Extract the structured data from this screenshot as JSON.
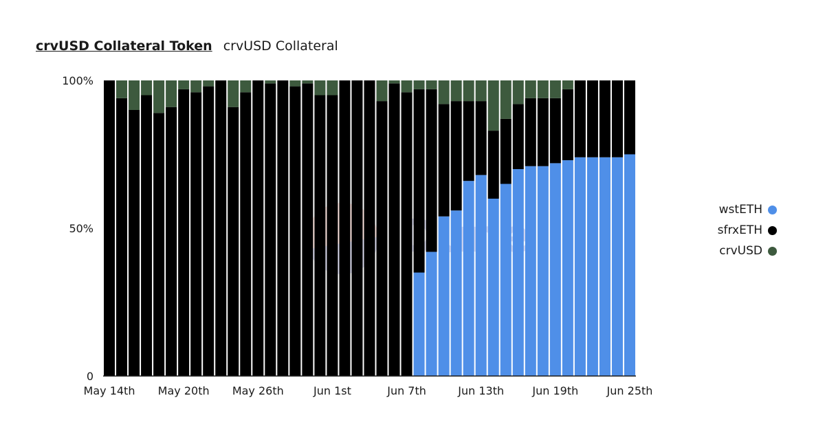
{
  "header": {
    "title": "crvUSD Collateral Token",
    "subtitle": "crvUSD Collateral"
  },
  "watermark": {
    "text": "Dune"
  },
  "colors": {
    "wstETH": "#4f8fe8",
    "sfrxETH": "#000000",
    "crvUSD": "#3d5a3e"
  },
  "chart_data": {
    "type": "bar",
    "stacked": true,
    "normalized": true,
    "title": "crvUSD Collateral Token",
    "xlabel": "",
    "ylabel": "",
    "ylim": [
      0,
      100
    ],
    "y_ticks": [
      "0",
      "50%",
      "100%"
    ],
    "x_tick_labels": [
      "May 14th",
      "May 20th",
      "May 26th",
      "Jun 1st",
      "Jun 7th",
      "Jun 13th",
      "Jun 19th",
      "Jun 25th"
    ],
    "legend_position": "right",
    "categories": [
      "May 14th",
      "May 15th",
      "May 16th",
      "May 17th",
      "May 18th",
      "May 19th",
      "May 20th",
      "May 21st",
      "May 22nd",
      "May 23rd",
      "May 24th",
      "May 25th",
      "May 26th",
      "May 27th",
      "May 28th",
      "May 29th",
      "May 30th",
      "May 31st",
      "Jun 1st",
      "Jun 2nd",
      "Jun 3rd",
      "Jun 4th",
      "Jun 5th",
      "Jun 6th",
      "Jun 7th",
      "Jun 8th",
      "Jun 9th",
      "Jun 10th",
      "Jun 11th",
      "Jun 12th",
      "Jun 13th",
      "Jun 14th",
      "Jun 15th",
      "Jun 16th",
      "Jun 17th",
      "Jun 18th",
      "Jun 19th",
      "Jun 20th",
      "Jun 21st",
      "Jun 22nd",
      "Jun 23rd",
      "Jun 24th",
      "Jun 25th"
    ],
    "series": [
      {
        "name": "wstETH",
        "color": "#4f8fe8",
        "values": [
          0,
          0,
          0,
          0,
          0,
          0,
          0,
          0,
          0,
          0,
          0,
          0,
          0,
          0,
          0,
          0,
          0,
          0,
          0,
          0,
          0,
          0,
          0,
          0,
          0,
          35,
          42,
          54,
          56,
          66,
          68,
          60,
          65,
          70,
          71,
          71,
          72,
          73,
          74,
          74,
          74,
          74,
          75
        ]
      },
      {
        "name": "sfrxETH",
        "color": "#000000",
        "values": [
          100,
          94,
          90,
          95,
          89,
          91,
          97,
          96,
          98,
          100,
          91,
          96,
          100,
          99,
          100,
          98,
          99,
          95,
          95,
          100,
          100,
          100,
          93,
          99,
          96,
          62,
          55,
          38,
          37,
          27,
          25,
          23,
          22,
          22,
          23,
          23,
          22,
          24,
          26,
          26,
          26,
          26,
          25
        ]
      },
      {
        "name": "crvUSD",
        "color": "#3d5a3e",
        "values": [
          0,
          6,
          10,
          5,
          11,
          9,
          3,
          4,
          2,
          0,
          9,
          4,
          0,
          1,
          0,
          2,
          1,
          5,
          5,
          0,
          0,
          0,
          7,
          1,
          4,
          3,
          3,
          8,
          7,
          7,
          7,
          17,
          13,
          8,
          6,
          6,
          6,
          3,
          0,
          0,
          0,
          0,
          0
        ]
      }
    ]
  }
}
